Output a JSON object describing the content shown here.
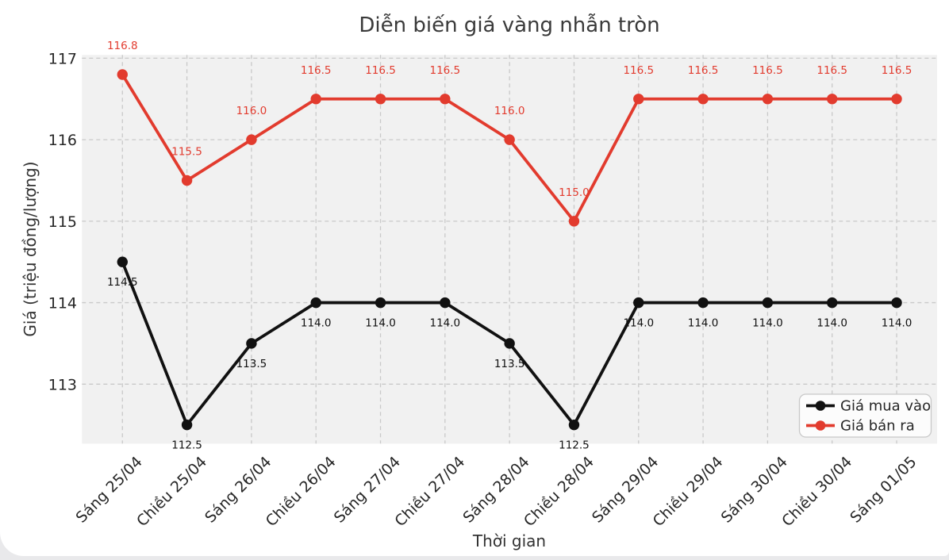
{
  "chart_data": {
    "type": "line",
    "title": "Diễn biến giá vàng nhẫn tròn",
    "xlabel": "Thời gian",
    "ylabel": "Giá (triệu đồng/lượng)",
    "categories": [
      "Sáng 25/04",
      "Chiều 25/04",
      "Sáng 26/04",
      "Chiều 26/04",
      "Sáng 27/04",
      "Chiều 27/04",
      "Sáng 28/04",
      "Chiều 28/04",
      "Sáng 29/04",
      "Chiều 29/04",
      "Sáng 30/04",
      "Chiều 30/04",
      "Sáng 01/05"
    ],
    "series": [
      {
        "name": "Giá mua vào",
        "color": "#111111",
        "values": [
          114.5,
          112.5,
          113.5,
          114.0,
          114.0,
          114.0,
          113.5,
          112.5,
          114.0,
          114.0,
          114.0,
          114.0,
          114.0
        ],
        "point_labels_position": "below"
      },
      {
        "name": "Giá bán ra",
        "color": "#e23b2e",
        "values": [
          116.8,
          115.5,
          116.0,
          116.5,
          116.5,
          116.5,
          116.0,
          115.0,
          116.5,
          116.5,
          116.5,
          116.5,
          116.5
        ],
        "point_labels_position": "above"
      }
    ],
    "yticks": [
      113,
      114,
      115,
      116,
      117
    ],
    "ylim": [
      112.27,
      117.04
    ],
    "grid": true,
    "legend_position": "lower right",
    "colors": {
      "plot_background": "#f1f1f1",
      "grid_line": "#c9c9c9",
      "legend_background": "#fcfcfc",
      "legend_border": "#c8c8c8"
    }
  }
}
